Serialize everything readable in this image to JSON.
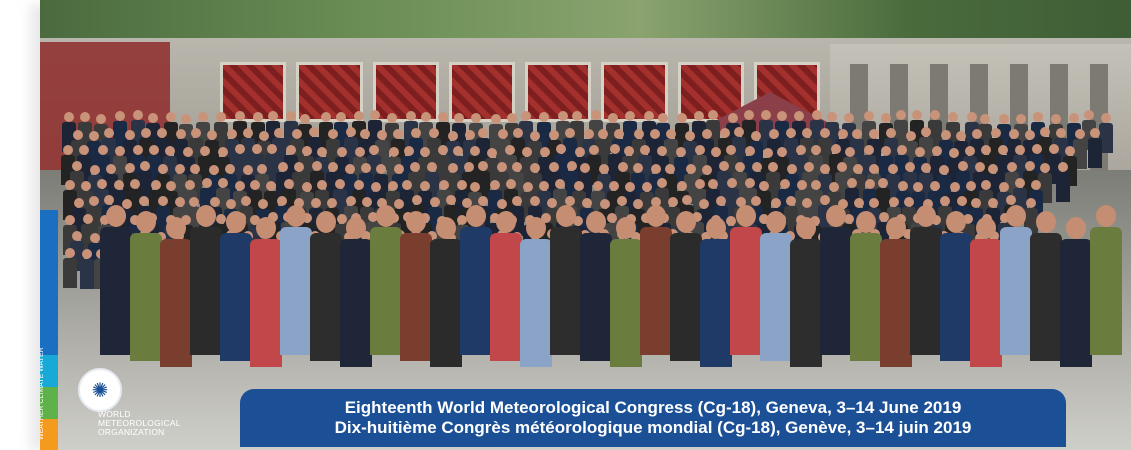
{
  "banner": {
    "line1": "Eighteenth World Meteorological Congress (Cg-18), Geneva, 3–14 June 2019",
    "line2": "Dix-huitième Congrès météorologique mondial (Cg-18), Genève, 3–14 juin 2019"
  },
  "logo": {
    "org_name_line1": "WORLD",
    "org_name_line2": "METEOROLOGICAL",
    "org_name_line3": "ORGANIZATION",
    "vertical_text": "WEATHER CLIMATE WATER"
  },
  "colors": {
    "banner_bg": "#1b4f96",
    "stripe_blue": "#1b6fc0",
    "stripe_cyan": "#18a9d6",
    "stripe_green": "#5fb24a",
    "stripe_orange": "#f39a1f"
  }
}
